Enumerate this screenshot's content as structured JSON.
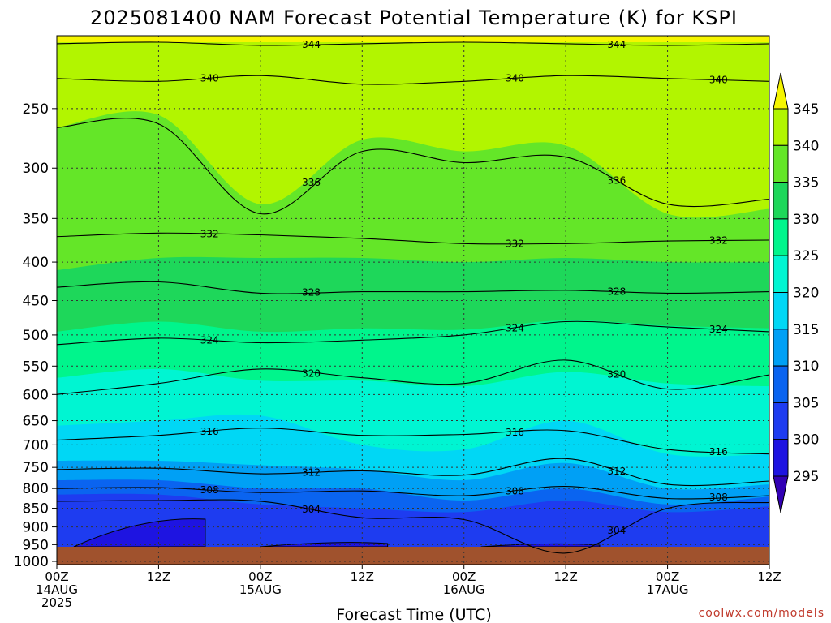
{
  "chart_data": {
    "type": "heatmap",
    "title": "2025081400 NAM Forecast Potential Temperature (K) for KSPI",
    "xlabel": "Forecast Time (UTC)",
    "credit": "coolwx.com/models",
    "x_ticks": [
      {
        "hour": 0,
        "lines": [
          "00Z",
          "14AUG",
          "2025"
        ]
      },
      {
        "hour": 12,
        "lines": [
          "12Z"
        ]
      },
      {
        "hour": 24,
        "lines": [
          "00Z",
          "15AUG"
        ]
      },
      {
        "hour": 36,
        "lines": [
          "12Z"
        ]
      },
      {
        "hour": 48,
        "lines": [
          "00Z",
          "16AUG"
        ]
      },
      {
        "hour": 60,
        "lines": [
          "12Z"
        ]
      },
      {
        "hour": 72,
        "lines": [
          "00Z",
          "17AUG"
        ]
      },
      {
        "hour": 84,
        "lines": [
          "12Z"
        ]
      }
    ],
    "xlim": [
      0,
      84
    ],
    "y_ticks": [
      "250",
      "300",
      "350",
      "400",
      "450",
      "500",
      "550",
      "600",
      "650",
      "700",
      "750",
      "800",
      "850",
      "900",
      "950",
      "1000"
    ],
    "ylim": [
      200,
      1010
    ],
    "y_scale": "log",
    "grid": true,
    "colorbar": {
      "labels": [
        "345",
        "340",
        "335",
        "330",
        "325",
        "320",
        "315",
        "310",
        "305",
        "300",
        "295"
      ],
      "colors": [
        "#f5f500",
        "#b2f500",
        "#64e628",
        "#1ed75a",
        "#00f58c",
        "#00f5d2",
        "#00d7f5",
        "#00a0f5",
        "#0a64f0",
        "#1e3cf0",
        "#1e14e1",
        "#3200b4"
      ]
    },
    "ground_color": "#a0522d",
    "series": [
      {
        "name": "344",
        "pressure": [
          205,
          204,
          206,
          205,
          204,
          205,
          206,
          205
        ]
      },
      {
        "name": "340",
        "pressure": [
          228,
          230,
          226,
          232,
          230,
          226,
          228,
          230
        ]
      },
      {
        "name": "336",
        "pressure": [
          265,
          262,
          345,
          285,
          295,
          290,
          335,
          330
        ]
      },
      {
        "name": "332",
        "pressure": [
          370,
          366,
          368,
          372,
          378,
          378,
          375,
          374
        ]
      },
      {
        "name": "328",
        "pressure": [
          432,
          425,
          440,
          438,
          438,
          436,
          440,
          438
        ]
      },
      {
        "name": "324",
        "pressure": [
          515,
          505,
          512,
          508,
          500,
          480,
          488,
          495
        ]
      },
      {
        "name": "320",
        "pressure": [
          600,
          580,
          555,
          570,
          580,
          540,
          590,
          565
        ]
      },
      {
        "name": "316",
        "pressure": [
          690,
          680,
          665,
          680,
          678,
          670,
          710,
          720
        ]
      },
      {
        "name": "312",
        "pressure": [
          755,
          752,
          765,
          758,
          768,
          730,
          790,
          782
        ]
      },
      {
        "name": "308",
        "pressure": [
          800,
          798,
          810,
          806,
          818,
          795,
          825,
          818
        ]
      },
      {
        "name": "304",
        "pressure": [
          832,
          830,
          832,
          875,
          880,
          975,
          850,
          835
        ]
      }
    ],
    "fill_bands": [
      {
        "upper_p": [
          204,
          204,
          204,
          204,
          204,
          204,
          204,
          204
        ],
        "color": "#b2f500"
      },
      {
        "upper_p": [
          265,
          255,
          335,
          275,
          285,
          280,
          345,
          340
        ],
        "color": "#64e628"
      },
      {
        "upper_p": [
          410,
          395,
          395,
          395,
          400,
          395,
          400,
          400
        ],
        "color": "#1ed75a"
      },
      {
        "upper_p": [
          495,
          480,
          495,
          490,
          492,
          478,
          486,
          490
        ],
        "color": "#00f58c"
      },
      {
        "upper_p": [
          570,
          555,
          575,
          575,
          585,
          560,
          580,
          585
        ],
        "color": "#00f5d2"
      },
      {
        "upper_p": [
          660,
          650,
          640,
          700,
          710,
          650,
          720,
          720
        ],
        "color": "#00d7f5"
      },
      {
        "upper_p": [
          735,
          735,
          745,
          755,
          780,
          740,
          800,
          790
        ],
        "color": "#00a0f5"
      },
      {
        "upper_p": [
          780,
          780,
          800,
          800,
          830,
          800,
          840,
          820
        ],
        "color": "#0a64f0"
      },
      {
        "upper_p": [
          815,
          815,
          840,
          850,
          860,
          830,
          860,
          845
        ],
        "color": "#1e3cf0"
      }
    ]
  }
}
